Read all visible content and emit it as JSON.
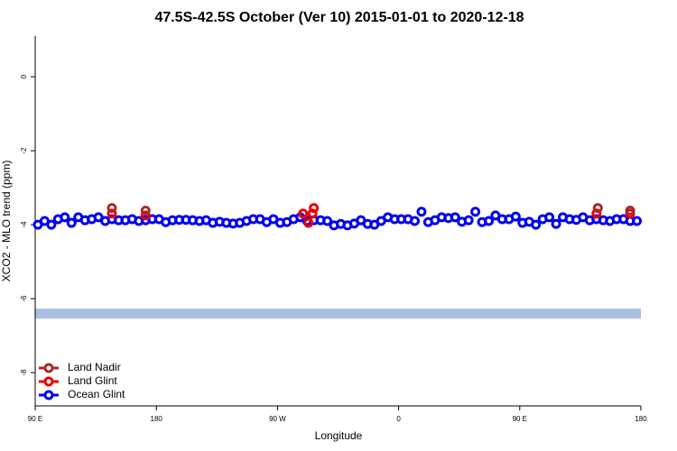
{
  "chart_data": {
    "type": "scatter",
    "title": "47.5S-42.5S October (Ver 10)   2015-01-01 to 2020-12-18",
    "x_label": "Longitude",
    "y_label": "XCO2 - MLO trend (ppm)",
    "xlim": [
      90,
      540
    ],
    "ylim": [
      -8.9,
      1.1
    ],
    "xticks": [
      {
        "value": 90,
        "label": "90 E"
      },
      180,
      {
        "value": 270,
        "label": "90 W"
      },
      {
        "value": 360,
        "label": "0"
      },
      {
        "value": 450,
        "label": "90 E"
      },
      {
        "value": 540,
        "label": "180"
      }
    ],
    "yticks": [
      0,
      -2,
      -4,
      -6,
      -8
    ],
    "band": {
      "color": "#a9bfdf",
      "range": [
        -6.27,
        -6.54
      ]
    },
    "legend": "bottom-left",
    "series": [
      {
        "name": "Ocean Glint",
        "color": "#0000ee",
        "x": [
          92,
          97,
          102,
          107,
          112,
          117,
          122,
          127,
          132,
          137,
          142,
          147,
          152,
          157,
          162,
          167,
          172,
          177,
          182,
          187,
          192,
          197,
          202,
          207,
          212,
          217,
          222,
          227,
          232,
          237,
          242,
          247,
          252,
          257,
          262,
          267,
          272,
          277,
          282,
          287,
          292,
          297,
          302,
          307,
          312,
          317,
          322,
          327,
          332,
          337,
          342,
          347,
          352,
          357,
          362,
          367,
          372,
          377,
          382,
          387,
          392,
          397,
          402,
          407,
          412,
          417,
          422,
          427,
          432,
          437,
          442,
          447,
          452,
          457,
          462,
          467,
          472,
          477,
          482,
          487,
          492,
          497,
          502,
          507,
          512,
          517,
          522,
          527,
          532,
          537
        ],
        "values": [
          -4.0,
          -3.9,
          -4.0,
          -3.85,
          -3.8,
          -3.95,
          -3.8,
          -3.88,
          -3.85,
          -3.8,
          -3.9,
          -3.85,
          -3.88,
          -3.88,
          -3.85,
          -3.9,
          -3.88,
          -3.85,
          -3.85,
          -3.93,
          -3.88,
          -3.87,
          -3.87,
          -3.88,
          -3.9,
          -3.88,
          -3.95,
          -3.92,
          -3.95,
          -3.97,
          -3.95,
          -3.9,
          -3.85,
          -3.85,
          -3.93,
          -3.85,
          -3.95,
          -3.93,
          -3.85,
          -3.8,
          -3.9,
          -3.88,
          -3.88,
          -3.9,
          -4.02,
          -3.98,
          -4.02,
          -3.97,
          -3.88,
          -3.98,
          -4.0,
          -3.9,
          -3.8,
          -3.85,
          -3.85,
          -3.85,
          -3.9,
          -3.65,
          -3.93,
          -3.88,
          -3.8,
          -3.82,
          -3.8,
          -3.92,
          -3.88,
          -3.65,
          -3.93,
          -3.9,
          -3.75,
          -3.85,
          -3.85,
          -3.78,
          -3.95,
          -3.92,
          -4.0,
          -3.85,
          -3.8,
          -3.98,
          -3.8,
          -3.85,
          -3.87,
          -3.8,
          -3.88,
          -3.85,
          -3.88,
          -3.9,
          -3.85,
          -3.85,
          -3.9,
          -3.9
        ]
      },
      {
        "name": "Land Glint",
        "color": "#ee0000",
        "x": [
          147,
          172,
          289,
          293,
          297,
          296,
          507,
          532
        ],
        "values": [
          -3.7,
          -3.75,
          -3.7,
          -3.95,
          -3.55,
          -3.7,
          -3.7,
          -3.7
        ]
      },
      {
        "name": "Land Nadir",
        "color": "#a52a2a",
        "x": [
          147,
          172,
          508,
          532
        ],
        "values": [
          -3.55,
          -3.62,
          -3.55,
          -3.62
        ]
      }
    ],
    "legend_order": [
      2,
      1,
      0
    ]
  }
}
